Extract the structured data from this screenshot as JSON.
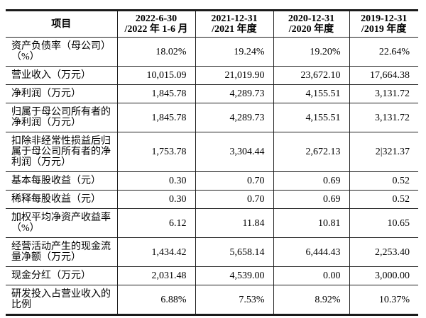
{
  "table": {
    "header_label": "项目",
    "periods": [
      {
        "line1": "2022-6-30",
        "line2": "/2022 年 1-6 月"
      },
      {
        "line1": "2021-12-31",
        "line2": "/2021 年度"
      },
      {
        "line1": "2020-12-31",
        "line2": "/2020 年度"
      },
      {
        "line1": "2019-12-31",
        "line2": "/2019 年度"
      }
    ],
    "rows": [
      {
        "label": "资产负债率（母公司）（%）",
        "values": [
          "18.02%",
          "19.24%",
          "19.20%",
          "22.64%"
        ]
      },
      {
        "label": "营业收入（万元）",
        "values": [
          "10,015.09",
          "21,019.90",
          "23,672.10",
          "17,664.38"
        ]
      },
      {
        "label": "净利润（万元）",
        "values": [
          "1,845.78",
          "4,289.73",
          "4,155.51",
          "3,131.72"
        ]
      },
      {
        "label": "归属于母公司所有者的净利润（万元）",
        "values": [
          "1,845.78",
          "4,289.73",
          "4,155.51",
          "3,131.72"
        ]
      },
      {
        "label": "扣除非经常性损益后归属于母公司所有者的净利润（万元）",
        "values": [
          "1,753.78",
          "3,304.44",
          "2,672.13",
          "2|321.37"
        ]
      },
      {
        "label": "基本每股收益（元）",
        "values": [
          "0.30",
          "0.70",
          "0.69",
          "0.52"
        ]
      },
      {
        "label": "稀释每股收益（元）",
        "values": [
          "0.30",
          "0.70",
          "0.69",
          "0.52"
        ]
      },
      {
        "label": "加权平均净资产收益率（%）",
        "values": [
          "6.12",
          "11.84",
          "10.81",
          "10.65"
        ]
      },
      {
        "label": "经营活动产生的现金流量净额（万元）",
        "values": [
          "1,434.42",
          "5,658.14",
          "6,444.43",
          "2,253.40"
        ]
      },
      {
        "label": "现金分红（万元）",
        "values": [
          "2,031.48",
          "4,539.00",
          "0.00",
          "3,000.00"
        ]
      },
      {
        "label": "研发投入占营业收入的比例",
        "values": [
          "6.88%",
          "7.53%",
          "8.92%",
          "10.37%"
        ]
      }
    ]
  }
}
